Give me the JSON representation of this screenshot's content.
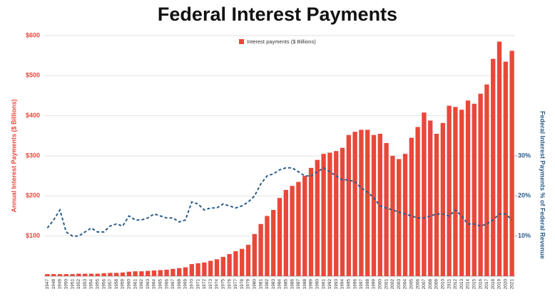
{
  "chart_data": {
    "type": "bar",
    "title": "Federal Interest Payments",
    "y_label": "Annual Interest Payments ($ Billions)",
    "y2_label": "Federal Interest Payments % of Federal Revenue",
    "categories": [
      "1947",
      "1948",
      "1949",
      "1950",
      "1951",
      "1952",
      "1953",
      "1954",
      "1955",
      "1956",
      "1957",
      "1958",
      "1959",
      "1960",
      "1961",
      "1962",
      "1963",
      "1964",
      "1965",
      "1966",
      "1967",
      "1968",
      "1969",
      "1970",
      "1971",
      "1972",
      "1973",
      "1974",
      "1975",
      "1976",
      "1977",
      "1978",
      "1979",
      "1980",
      "1981",
      "1982",
      "1983",
      "1984",
      "1985",
      "1986",
      "1987",
      "1988",
      "1989",
      "1990",
      "1991",
      "1992",
      "1993",
      "1994",
      "1995",
      "1996",
      "1997",
      "1998",
      "1999",
      "2000",
      "2001",
      "2002",
      "2003",
      "2004",
      "2005",
      "2006",
      "2007",
      "2008",
      "2009",
      "2010",
      "2011",
      "2012",
      "2013",
      "2014",
      "2015",
      "2016",
      "2017",
      "2018",
      "2019",
      "2020",
      "2021"
    ],
    "series": [
      {
        "name": "Interest payments  ($ Billions)",
        "type": "bar",
        "color": "#e8483a",
        "values": [
          5,
          5,
          5,
          5,
          5,
          6,
          6,
          6,
          6,
          7,
          8,
          8,
          9,
          11,
          12,
          12,
          13,
          14,
          15,
          16,
          18,
          20,
          22,
          30,
          32,
          34,
          38,
          42,
          48,
          55,
          62,
          68,
          78,
          105,
          130,
          150,
          165,
          195,
          215,
          225,
          235,
          250,
          270,
          290,
          305,
          308,
          312,
          320,
          352,
          360,
          365,
          365,
          352,
          355,
          332,
          300,
          292,
          305,
          345,
          372,
          408,
          388,
          355,
          382,
          425,
          422,
          415,
          438,
          430,
          455,
          478,
          542,
          585,
          535,
          562
        ]
      },
      {
        "type": "line",
        "axis": "y2",
        "color": "#2a5d8a",
        "dashed": true,
        "values": [
          12,
          14,
          16.5,
          11,
          10,
          10,
          11,
          12,
          11,
          11,
          12.5,
          13,
          12.5,
          15,
          14,
          14,
          14.5,
          15.5,
          15,
          14.5,
          14.5,
          13.5,
          14,
          18.5,
          18,
          16.5,
          17,
          17,
          18,
          17.5,
          17,
          17.5,
          18.5,
          20,
          23,
          25,
          25.5,
          26.5,
          27,
          27,
          26,
          25,
          25,
          26,
          27,
          26,
          25,
          24,
          24,
          23.5,
          22,
          21,
          19.5,
          17.5,
          17,
          16.5,
          16,
          15.5,
          15,
          14.5,
          14.5,
          15,
          15.5,
          15.5,
          15,
          16.5,
          15,
          13,
          13,
          12.5,
          13,
          14,
          15.5,
          15.5,
          14
        ]
      }
    ],
    "ylim": [
      0,
      600
    ],
    "yticks": [
      {
        "value": 100,
        "label": "$100"
      },
      {
        "value": 200,
        "label": "$200"
      },
      {
        "value": 300,
        "label": "$300"
      },
      {
        "value": 400,
        "label": "$400"
      },
      {
        "value": 500,
        "label": "$500"
      },
      {
        "value": 600,
        "label": "$600"
      }
    ],
    "y2lim": [
      0,
      60
    ],
    "y2ticks": [
      {
        "value": 10,
        "label": "10%"
      },
      {
        "value": 20,
        "label": "20%"
      },
      {
        "value": 30,
        "label": "30%"
      }
    ],
    "grid": true,
    "legend": "top"
  }
}
